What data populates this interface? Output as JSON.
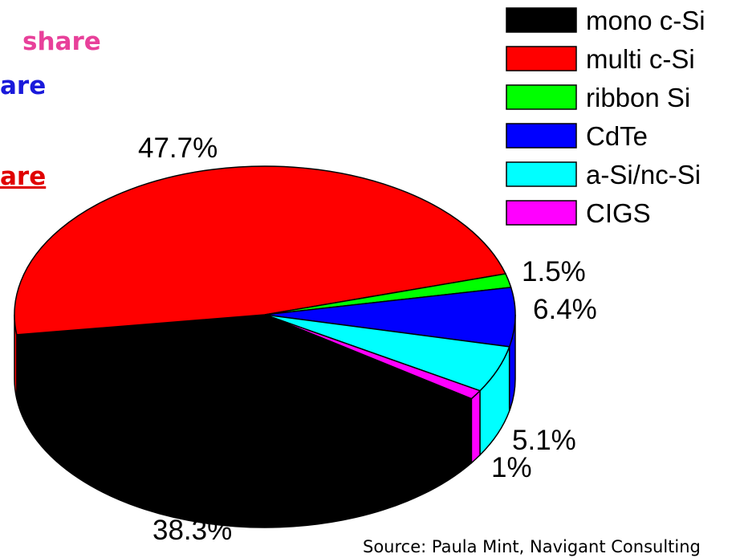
{
  "chart_data": {
    "type": "pie",
    "categories": [
      "mono c-Si",
      "multi c-Si",
      "ribbon Si",
      "CdTe",
      "a-Si/nc-Si",
      "CIGS"
    ],
    "values": [
      38.3,
      47.7,
      1.5,
      6.4,
      5.1,
      1
    ],
    "value_labels": [
      "38.3%",
      "47.7%",
      "1.5%",
      "6.4%",
      "5.1%",
      "1%"
    ],
    "colors": [
      "#000000",
      "#ff0000",
      "#00ff00",
      "#0000ff",
      "#00ffff",
      "#ff00ff"
    ],
    "legend": "top-right",
    "annotations": [
      {
        "text": "share",
        "color": "#e8409a"
      },
      {
        "text": "are",
        "color": "#1a1adb"
      },
      {
        "text": "are",
        "color": "#e00000"
      }
    ],
    "source": "Source: Paula Mint, Navigant Consulting"
  }
}
